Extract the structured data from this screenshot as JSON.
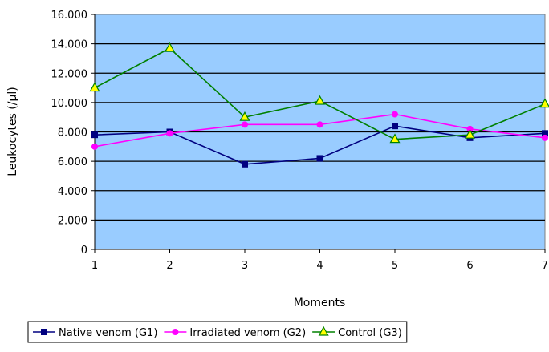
{
  "chart_data": {
    "type": "line",
    "title": "",
    "xlabel": "Moments",
    "ylabel": "Leukocytes (/µl)",
    "x": [
      1,
      2,
      3,
      4,
      5,
      6,
      7
    ],
    "x_tick_labels": [
      "1",
      "2",
      "3",
      "4",
      "5",
      "6",
      "7"
    ],
    "ylim": [
      0,
      16000
    ],
    "y_ticks": [
      0,
      2000,
      4000,
      6000,
      8000,
      10000,
      12000,
      14000,
      16000
    ],
    "y_tick_labels": [
      "0",
      "2.000",
      "4.000",
      "6.000",
      "8.000",
      "10.000",
      "12.000",
      "14.000",
      "16.000"
    ],
    "grid": true,
    "plot_background": "#99ccff",
    "legend_position": "bottom",
    "series": [
      {
        "name": "Native venom (G1)",
        "color": "#000080",
        "marker": "square",
        "values": [
          7800,
          8000,
          5800,
          6200,
          8400,
          7600,
          7900
        ]
      },
      {
        "name": "Irradiated venom (G2)",
        "color": "#ff00ff",
        "marker": "circle",
        "values": [
          7000,
          7900,
          8500,
          8500,
          9200,
          8200,
          7600
        ]
      },
      {
        "name": "Control (G3)",
        "color": "#008000",
        "marker": "triangle",
        "values": [
          11000,
          13700,
          9000,
          10100,
          7500,
          7800,
          9900
        ]
      }
    ]
  }
}
